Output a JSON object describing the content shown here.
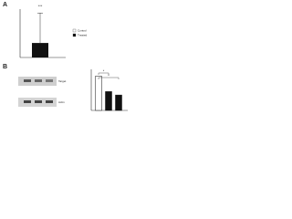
{
  "panel_a": {
    "label": "A",
    "significance": "***",
    "chart_data": {
      "type": "bar",
      "values": [
        0.3
      ],
      "errors": [
        0.62
      ],
      "color": "#111111",
      "ylim": [
        0,
        1
      ],
      "legend": [
        "Control",
        "Treated"
      ]
    }
  },
  "panel_b": {
    "label": "B",
    "blots": [
      "Target",
      "Actin"
    ],
    "chart_data": {
      "type": "bar",
      "values": [
        1.0,
        0.55,
        0.45
      ],
      "colors": [
        "#ffffff",
        "#111111",
        "#111111"
      ],
      "ylim": [
        0,
        1.2
      ],
      "significance": [
        "*",
        "*"
      ]
    }
  }
}
